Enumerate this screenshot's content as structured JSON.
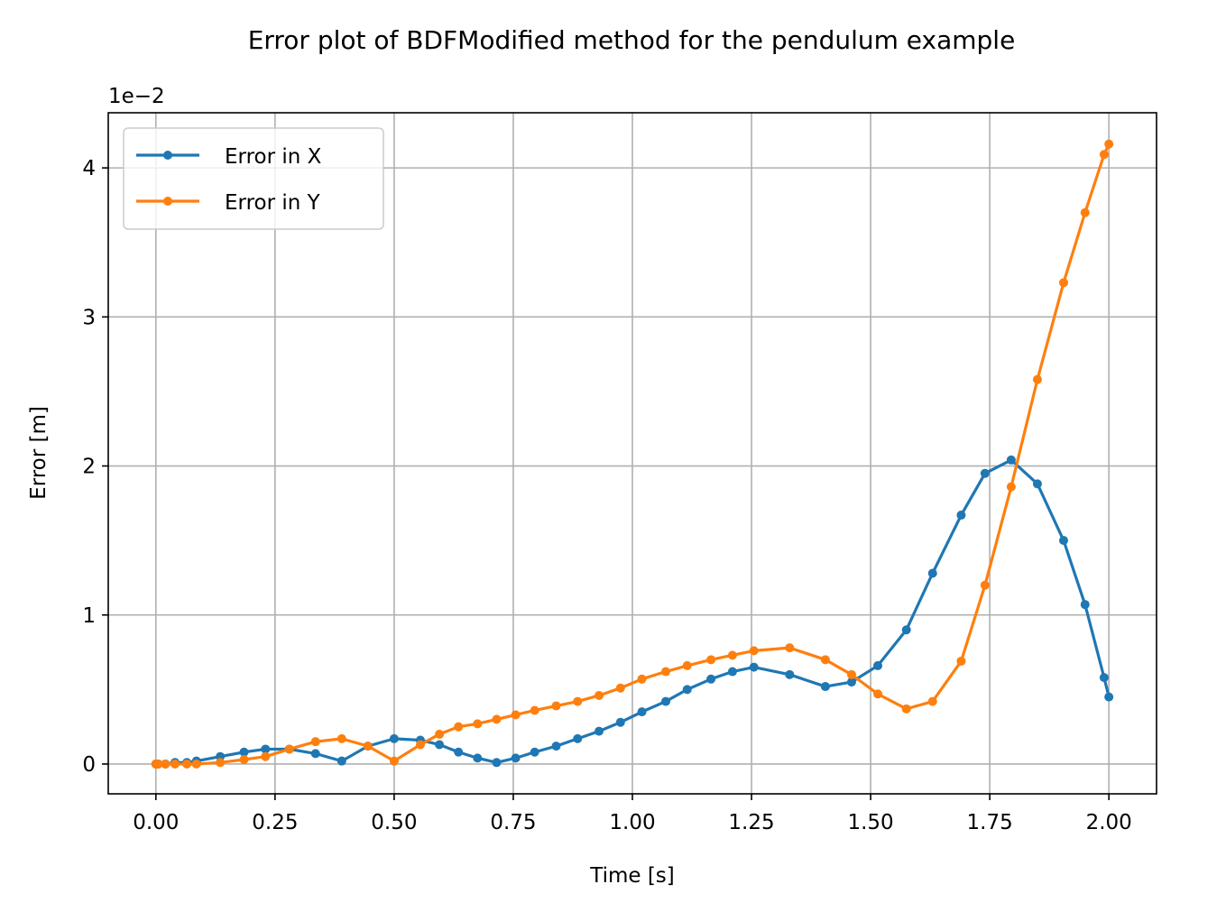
{
  "chart_data": {
    "type": "line",
    "title": "Error plot of BDFModified method for the pendulum example",
    "xlabel": "Time [s]",
    "ylabel": "Error [m]",
    "y_scale_label": "1e−2",
    "xlim": [
      -0.1,
      2.1
    ],
    "ylim": [
      -0.2,
      4.37
    ],
    "xticks": [
      0.0,
      0.25,
      0.5,
      0.75,
      1.0,
      1.25,
      1.5,
      1.75,
      2.0
    ],
    "xtick_labels": [
      "0.00",
      "0.25",
      "0.50",
      "0.75",
      "1.00",
      "1.25",
      "1.50",
      "1.75",
      "2.00"
    ],
    "yticks": [
      0,
      1,
      2,
      3,
      4
    ],
    "ytick_labels": [
      "0",
      "1",
      "2",
      "3",
      "4"
    ],
    "grid": true,
    "legend_position": "top-left",
    "series": [
      {
        "name": "Error in X",
        "color": "#1f77b4",
        "x": [
          0.0,
          0.0002,
          0.001,
          0.005,
          0.02,
          0.04,
          0.065,
          0.085,
          0.135,
          0.185,
          0.23,
          0.28,
          0.335,
          0.39,
          0.445,
          0.5,
          0.555,
          0.595,
          0.635,
          0.675,
          0.715,
          0.755,
          0.795,
          0.84,
          0.885,
          0.93,
          0.975,
          1.02,
          1.07,
          1.115,
          1.165,
          1.21,
          1.255,
          1.33,
          1.405,
          1.46,
          1.515,
          1.575,
          1.63,
          1.69,
          1.74,
          1.795,
          1.85,
          1.905,
          1.95,
          1.99,
          2.0
        ],
        "y": [
          0.0,
          0.0,
          0.0,
          0.0,
          0.0,
          0.01,
          0.01,
          0.02,
          0.05,
          0.08,
          0.1,
          0.1,
          0.07,
          0.02,
          0.12,
          0.17,
          0.16,
          0.13,
          0.08,
          0.04,
          0.01,
          0.04,
          0.08,
          0.12,
          0.17,
          0.22,
          0.28,
          0.35,
          0.42,
          0.5,
          0.57,
          0.62,
          0.65,
          0.6,
          0.52,
          0.55,
          0.66,
          0.9,
          1.28,
          1.67,
          1.95,
          2.04,
          1.88,
          1.5,
          1.07,
          0.58,
          0.45
        ]
      },
      {
        "name": "Error in Y",
        "color": "#ff7f0e",
        "x": [
          0.0,
          0.0002,
          0.001,
          0.005,
          0.02,
          0.04,
          0.065,
          0.085,
          0.135,
          0.185,
          0.23,
          0.28,
          0.335,
          0.39,
          0.445,
          0.5,
          0.555,
          0.595,
          0.635,
          0.675,
          0.715,
          0.755,
          0.795,
          0.84,
          0.885,
          0.93,
          0.975,
          1.02,
          1.07,
          1.115,
          1.165,
          1.21,
          1.255,
          1.33,
          1.405,
          1.46,
          1.515,
          1.575,
          1.63,
          1.69,
          1.74,
          1.795,
          1.85,
          1.905,
          1.95,
          1.99,
          2.0
        ],
        "y": [
          0.0,
          0.0,
          0.0,
          0.0,
          0.0,
          0.0,
          0.0,
          0.0,
          0.01,
          0.03,
          0.05,
          0.1,
          0.15,
          0.17,
          0.12,
          0.02,
          0.13,
          0.2,
          0.25,
          0.27,
          0.3,
          0.33,
          0.36,
          0.39,
          0.42,
          0.46,
          0.51,
          0.57,
          0.62,
          0.66,
          0.7,
          0.73,
          0.76,
          0.78,
          0.7,
          0.6,
          0.47,
          0.37,
          0.42,
          0.69,
          1.2,
          1.86,
          2.58,
          3.23,
          3.7,
          4.09,
          4.16
        ]
      }
    ]
  }
}
